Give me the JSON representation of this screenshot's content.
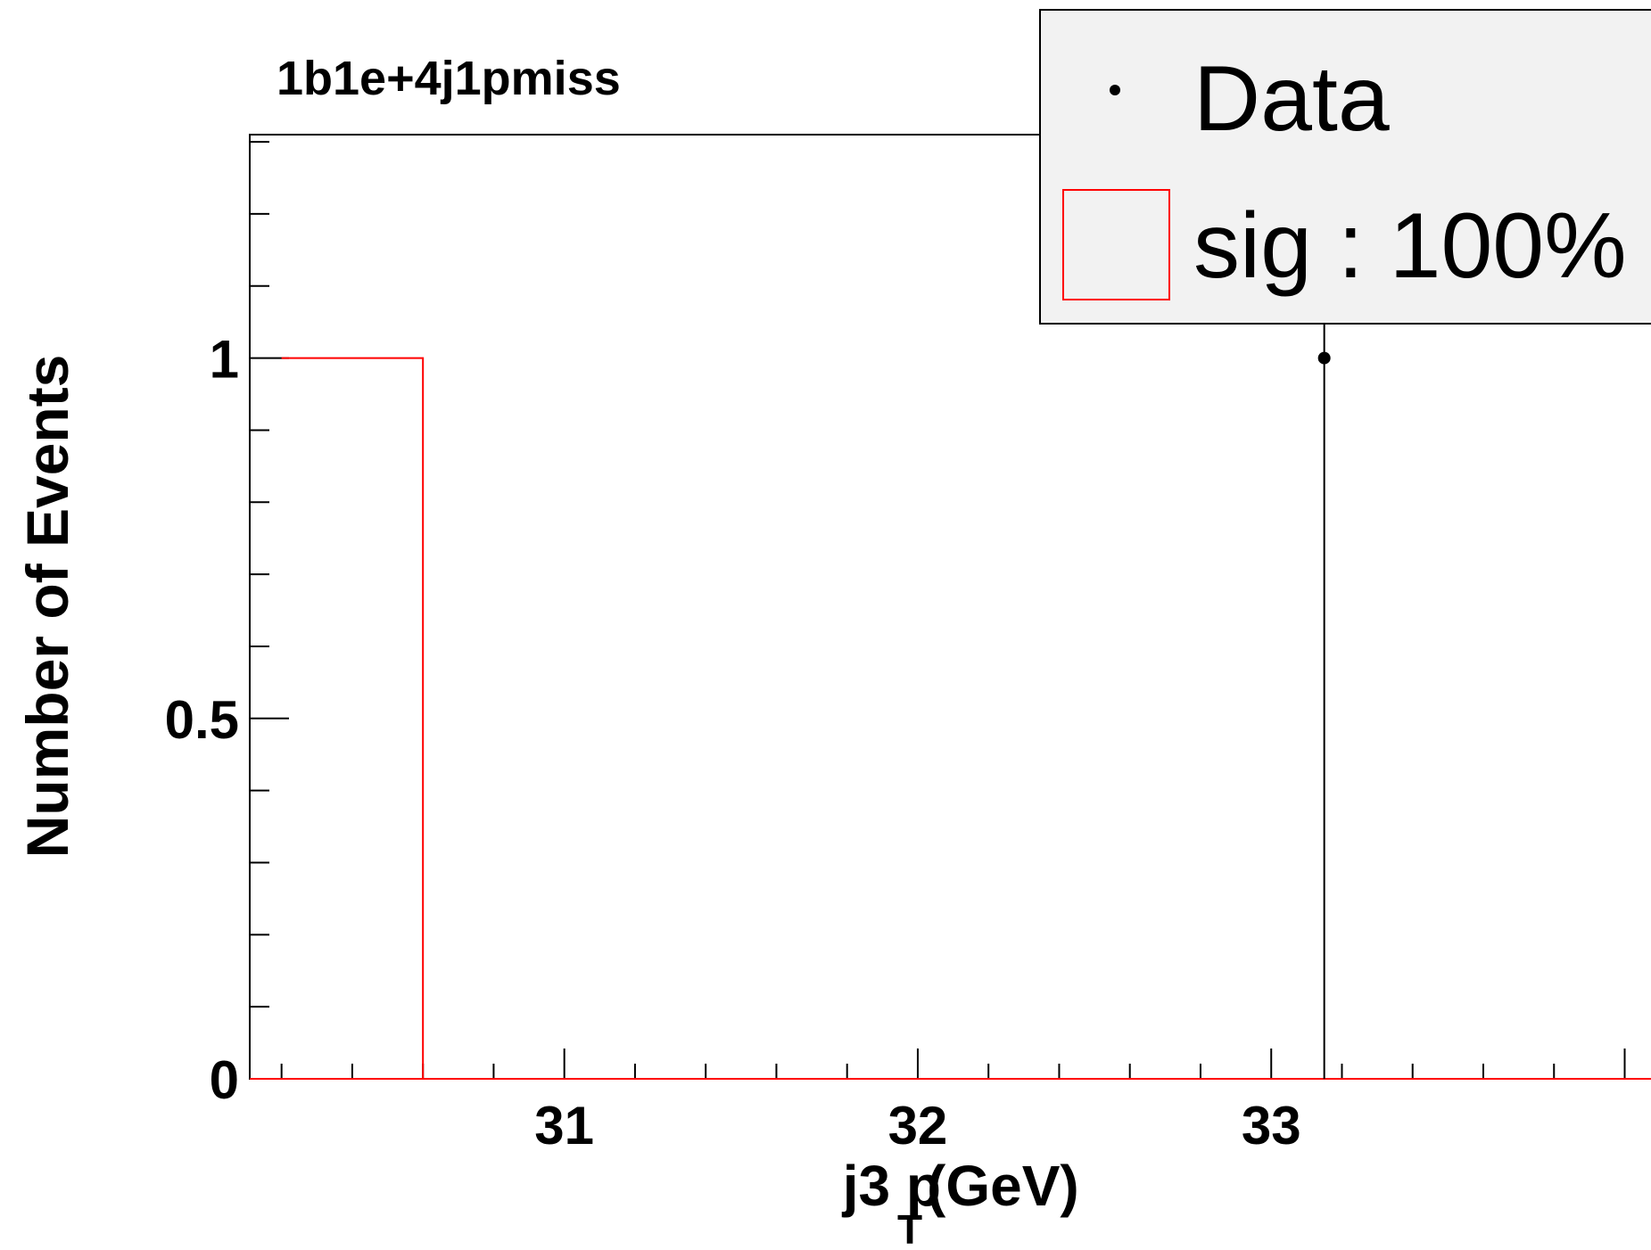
{
  "chart_data": {
    "type": "bar",
    "title": "1b1e+4j1pmiss",
    "xlabel": "j3 p",
    "xlabel_subscript": "T",
    "xlabel_unit": " (GeV)",
    "ylabel": "Number of Events",
    "xlim": [
      30.11,
      34.4
    ],
    "ylim": [
      0,
      1.31
    ],
    "x_ticks": [
      31,
      32,
      33
    ],
    "x_tick_labels": [
      "31",
      "32",
      "33"
    ],
    "y_ticks": [
      0,
      0.5,
      1
    ],
    "y_tick_labels": [
      "0",
      "0.5",
      "1"
    ],
    "grid": false,
    "legend_position": "top-right",
    "series": [
      {
        "name": "sig : 100%",
        "kind": "histogram",
        "color": "#ff0000",
        "bins": [
          {
            "x_low": 30.2,
            "x_high": 30.6,
            "value": 1
          }
        ]
      },
      {
        "name": "Data",
        "kind": "points",
        "color": "#000000",
        "points": [
          {
            "x": 33.15,
            "y": 1,
            "err_low": 1,
            "err_high": 1.3
          }
        ]
      }
    ]
  },
  "legend": {
    "items": [
      {
        "label": "Data",
        "marker": "dot"
      },
      {
        "label": "sig : 100%",
        "marker": "box"
      }
    ]
  }
}
